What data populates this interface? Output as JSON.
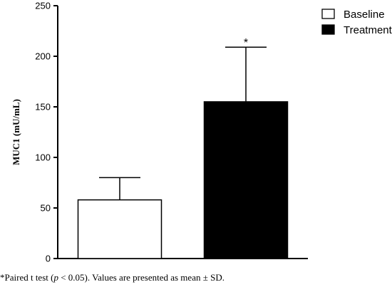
{
  "chart_data": {
    "type": "bar",
    "categories": [
      "Baseline",
      "Treatment"
    ],
    "series": [
      {
        "values": [
          58,
          155
        ],
        "error": [
          22,
          54
        ],
        "colors": [
          "#ffffff",
          "#000000"
        ]
      }
    ],
    "ylabel": "MUC1 (mU/mL)",
    "xlabel": "",
    "ylim": [
      0,
      250
    ],
    "yticks": [
      0,
      50,
      100,
      150,
      200,
      250
    ],
    "grid": false,
    "legend": {
      "position": "top-right",
      "entries": [
        {
          "label": "Baseline",
          "fill": "#ffffff"
        },
        {
          "label": "Treatment",
          "fill": "#000000"
        }
      ]
    },
    "annotations": [
      {
        "text": "*",
        "category": "Treatment"
      }
    ]
  },
  "footnote": {
    "prefix": "*Paired t test (",
    "italic": "p",
    "suffix": " < 0.05). Values are presented as mean ± SD."
  }
}
